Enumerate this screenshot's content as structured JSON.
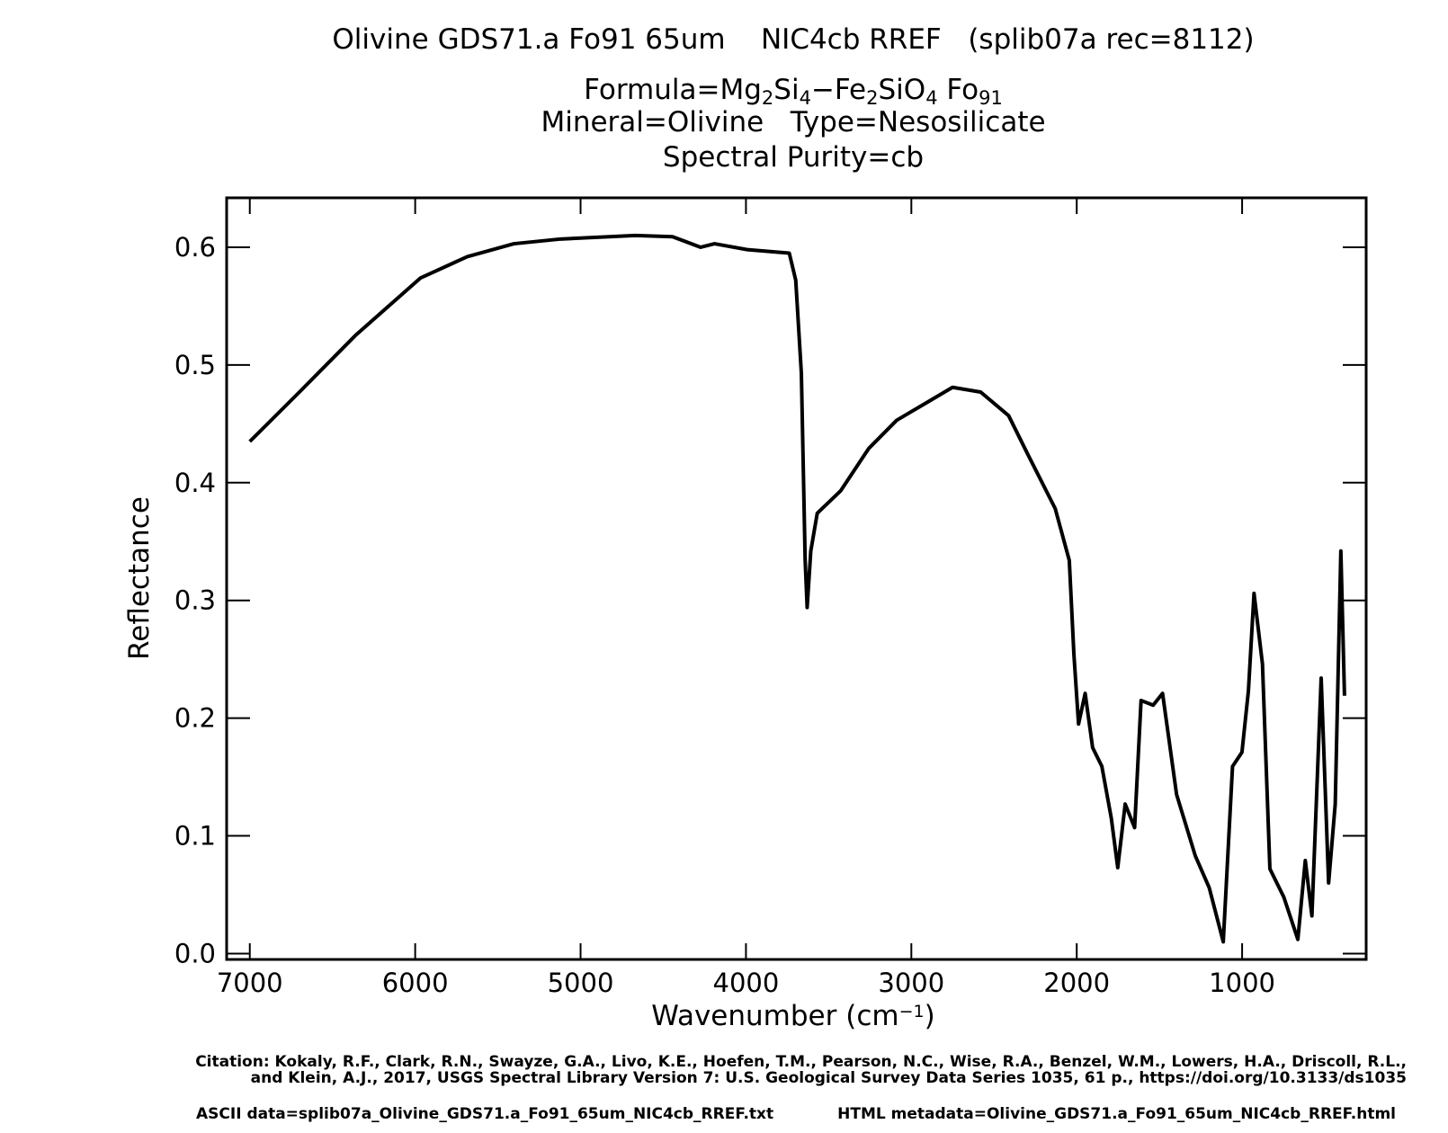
{
  "chart_data": {
    "type": "line",
    "title": "Olivine GDS71.a Fo91 65um    NIC4cb RREF   (splib07a rec=8112)",
    "formula": [
      {
        "text": "Formula=Mg"
      },
      {
        "text": "2",
        "sub": true
      },
      {
        "text": "Si"
      },
      {
        "text": "4",
        "sub": true
      },
      {
        "text": "−Fe"
      },
      {
        "text": "2",
        "sub": true
      },
      {
        "text": "SiO"
      },
      {
        "text": "4",
        "sub": true
      },
      {
        "text": " Fo"
      },
      {
        "text": "91",
        "sub": true
      }
    ],
    "mineral_line": "Mineral=Olivine   Type=Nesosilicate",
    "purity_line": "Spectral Purity=cb",
    "xlabel": [
      {
        "text": "Wavenumber (cm"
      },
      {
        "text": "−1",
        "sup": true
      },
      {
        "text": ")"
      }
    ],
    "ylabel": "Reflectance",
    "color": "#000000",
    "x": [
      7000,
      6700,
      6362,
      5967,
      5685,
      5403,
      5121,
      4670,
      4444,
      4274,
      4190,
      3992,
      3738,
      3699,
      3665,
      3642,
      3630,
      3608,
      3569,
      3428,
      3258,
      3089,
      2920,
      2751,
      2581,
      2412,
      2299,
      2130,
      2045,
      2017,
      1989,
      1949,
      1904,
      1848,
      1791,
      1752,
      1707,
      1650,
      1611,
      1538,
      1481,
      1396,
      1283,
      1199,
      1114,
      1058,
      1001,
      962,
      928,
      877,
      832,
      748,
      663,
      618,
      578,
      522,
      477,
      437,
      403,
      381
    ],
    "values": [
      0.435,
      0.477,
      0.525,
      0.574,
      0.592,
      0.603,
      0.607,
      0.61,
      0.609,
      0.6,
      0.603,
      0.598,
      0.595,
      0.572,
      0.493,
      0.334,
      0.294,
      0.342,
      0.374,
      0.393,
      0.429,
      0.453,
      0.467,
      0.481,
      0.477,
      0.457,
      0.425,
      0.378,
      0.334,
      0.254,
      0.195,
      0.221,
      0.175,
      0.159,
      0.115,
      0.073,
      0.127,
      0.107,
      0.215,
      0.211,
      0.221,
      0.135,
      0.083,
      0.056,
      0.01,
      0.159,
      0.171,
      0.223,
      0.306,
      0.246,
      0.072,
      0.048,
      0.012,
      0.079,
      0.032,
      0.234,
      0.06,
      0.127,
      0.342,
      0.219
    ],
    "xlim": [
      7140,
      250
    ],
    "ylim": [
      -0.005,
      0.642
    ],
    "xticks": [
      7000,
      6000,
      5000,
      4000,
      3000,
      2000,
      1000
    ],
    "yticks": [
      {
        "value": 0,
        "label": "0.0"
      },
      0.1,
      0.2,
      0.3,
      0.4,
      0.5,
      0.6
    ],
    "annotations": [
      "Citation: Kokaly, R.F., Clark, R.N., Swayze, G.A., Livo, K.E., Hoefen, T.M., Pearson, N.C., Wise, R.A., Benzel, W.M., Lowers, H.A., Driscoll, R.L.,",
      "and Klein, A.J., 2017, USGS Spectral Library Version 7: U.S. Geological Survey Data Series 1035, 61 p., https://doi.org/10.3133/ds1035",
      "ASCII data=splib07a_Olivine_GDS71.a_Fo91_65um_NIC4cb_RREF.txt",
      "HTML metadata=Olivine_GDS71.a_Fo91_65um_NIC4cb_RREF.html"
    ]
  }
}
